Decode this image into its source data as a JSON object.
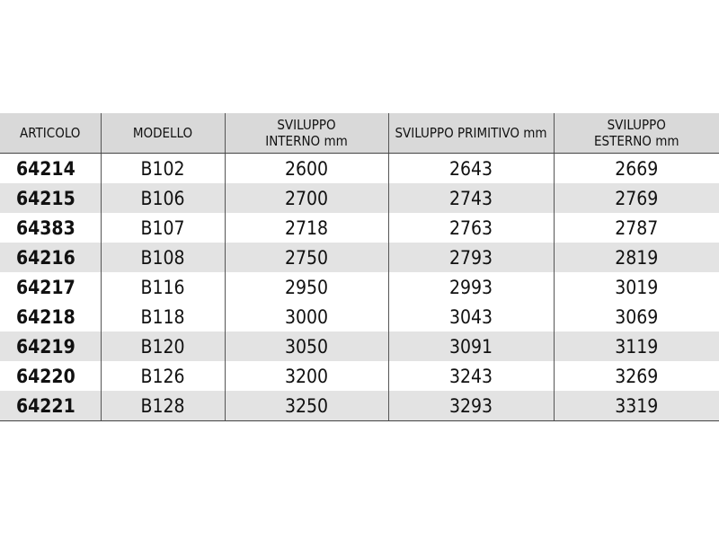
{
  "table": {
    "header": [
      "ARTICOLO",
      "MODELLO",
      "SVILUPPO INTERNO mm",
      "SVILUPPO PRIMITIVO mm",
      "SVILUPPO ESTERNO mm"
    ],
    "rows": [
      [
        "64214",
        "B102",
        "2600",
        "2643",
        "2669"
      ],
      [
        "64215",
        "B106",
        "2700",
        "2743",
        "2769"
      ],
      [
        "64383",
        "B107",
        "2718",
        "2763",
        "2787"
      ],
      [
        "64216",
        "B108",
        "2750",
        "2793",
        "2819"
      ],
      [
        "64217",
        "B116",
        "2950",
        "2993",
        "3019"
      ],
      [
        "64218",
        "B118",
        "3000",
        "3043",
        "3069"
      ],
      [
        "64219",
        "B120",
        "3050",
        "3091",
        "3119"
      ],
      [
        "64220",
        "B126",
        "3200",
        "3243",
        "3269"
      ],
      [
        "64221",
        "B128",
        "3250",
        "3293",
        "3319"
      ]
    ]
  }
}
